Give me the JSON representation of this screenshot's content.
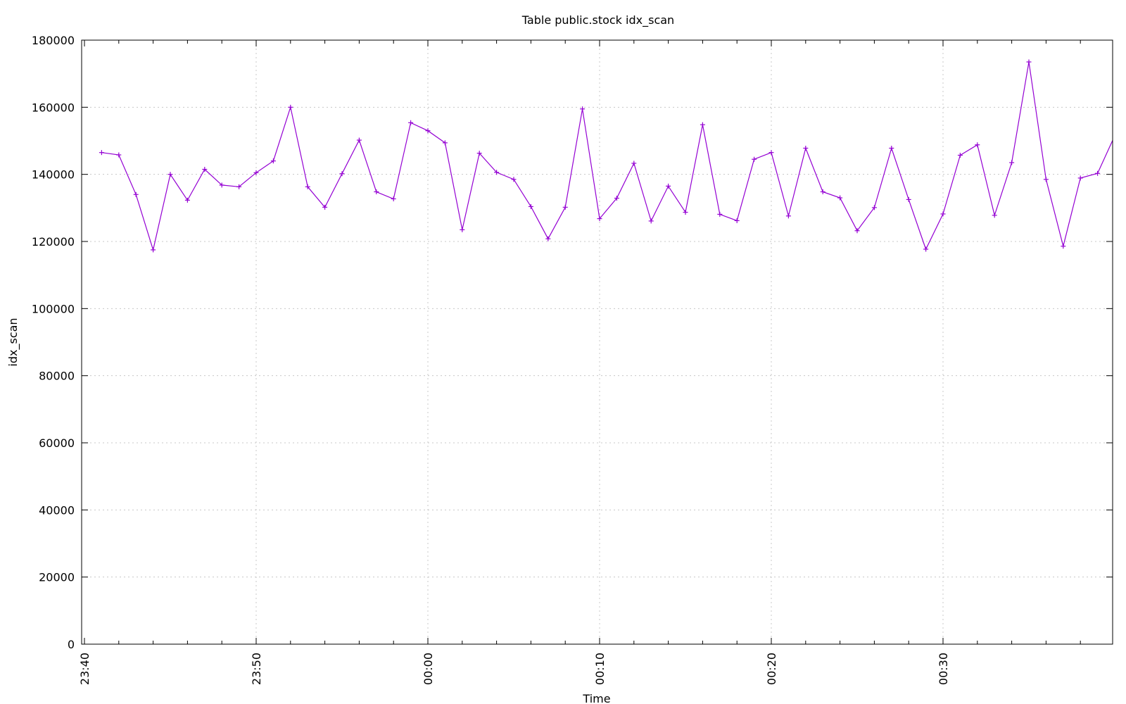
{
  "chart_data": {
    "type": "line",
    "title": "Table public.stock idx_scan",
    "xlabel": "Time",
    "ylabel": "idx_scan",
    "ylim": [
      0,
      180000
    ],
    "yticks": [
      0,
      20000,
      40000,
      60000,
      80000,
      100000,
      120000,
      140000,
      160000,
      180000
    ],
    "xlim": [
      "23:40",
      "00:39"
    ],
    "xticks": [
      "23:40",
      "23:50",
      "00:00",
      "00:10",
      "00:20",
      "00:30"
    ],
    "grid": true,
    "legend": "none",
    "series_color": "#9400d3",
    "series": [
      {
        "x": [
          "23:41",
          "23:42",
          "23:43",
          "23:44",
          "23:45",
          "23:46",
          "23:47",
          "23:48",
          "23:49",
          "23:50",
          "23:51",
          "23:52",
          "23:53",
          "23:54",
          "23:55",
          "23:56",
          "23:57",
          "23:58",
          "23:59",
          "00:00",
          "00:01",
          "00:02",
          "00:03",
          "00:04",
          "00:05",
          "00:06",
          "00:07",
          "00:08",
          "00:09",
          "00:10",
          "00:11",
          "00:12",
          "00:13",
          "00:14",
          "00:15",
          "00:16",
          "00:17",
          "00:18",
          "00:19",
          "00:20",
          "00:21",
          "00:22",
          "00:23",
          "00:24",
          "00:25",
          "00:26",
          "00:27",
          "00:28",
          "00:29",
          "00:30",
          "00:31",
          "00:32",
          "00:33",
          "00:34",
          "00:35",
          "00:36",
          "00:37",
          "00:38",
          "00:39",
          "00:40"
        ],
        "values": [
          146500,
          145800,
          134000,
          117500,
          140000,
          132300,
          141500,
          136800,
          136300,
          140500,
          144000,
          160000,
          136300,
          130200,
          140200,
          150200,
          134800,
          132700,
          155400,
          153000,
          149400,
          123500,
          146300,
          140600,
          138500,
          130400,
          120800,
          130200,
          159500,
          126800,
          132900,
          143300,
          126100,
          136500,
          128700,
          154800,
          128100,
          126200,
          144500,
          146500,
          127600,
          147800,
          134800,
          133000,
          123200,
          130100,
          147800,
          132500,
          117700,
          128200,
          145700,
          148800,
          127800,
          143500,
          173500,
          138500,
          118600,
          138900,
          140300,
          151500
        ]
      }
    ]
  }
}
